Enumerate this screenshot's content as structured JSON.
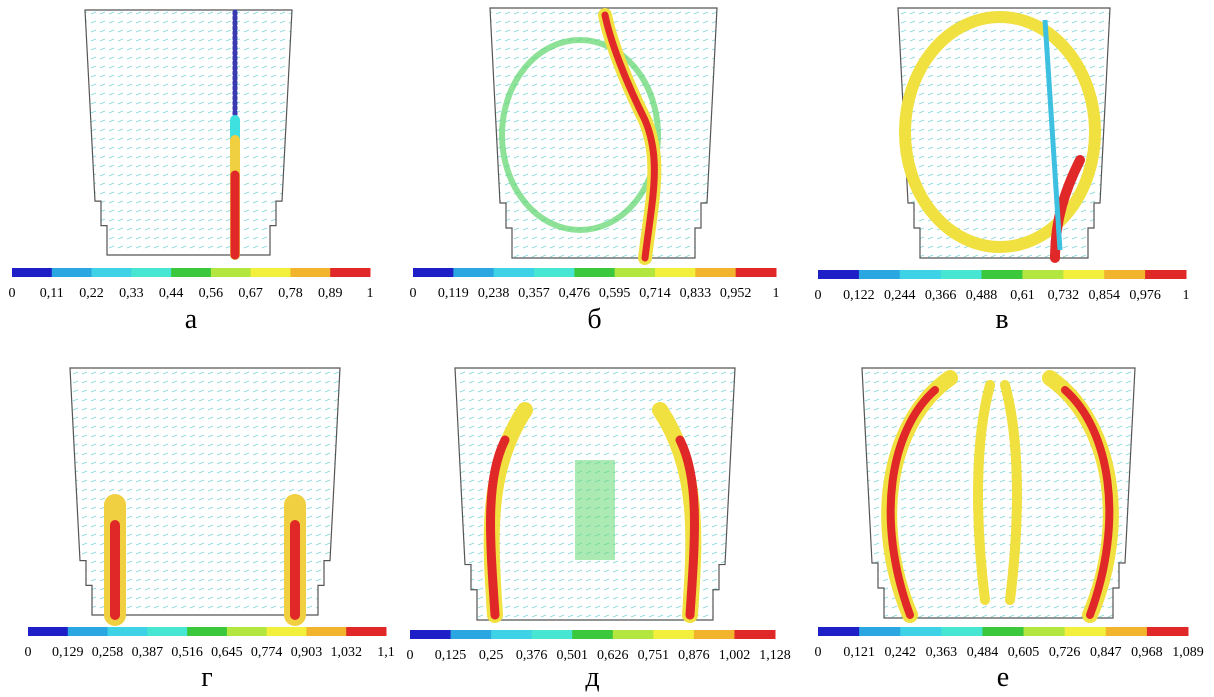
{
  "panels": [
    {
      "label": "а",
      "ticks": [
        "0",
        "0,11",
        "0,22",
        "0,33",
        "0,44",
        "0,56",
        "0,67",
        "0,78",
        "0,89",
        "1"
      ]
    },
    {
      "label": "б",
      "ticks": [
        "0",
        "0,119",
        "0,238",
        "0,357",
        "0,476",
        "0,595",
        "0,714",
        "0,833",
        "0,952",
        "1"
      ]
    },
    {
      "label": "в",
      "ticks": [
        "0",
        "0,122",
        "0,244",
        "0,366",
        "0,488",
        "0,61",
        "0,732",
        "0,854",
        "0,976",
        "1"
      ]
    },
    {
      "label": "г",
      "ticks": [
        "0",
        "0,129",
        "0,258",
        "0,387",
        "0,516",
        "0,645",
        "0,774",
        "0,903",
        "1,032",
        "1,1"
      ]
    },
    {
      "label": "д",
      "ticks": [
        "0",
        "0,125",
        "0,25",
        "0,376",
        "0,501",
        "0,626",
        "0,751",
        "0,876",
        "1,002",
        "1,128"
      ]
    },
    {
      "label": "е",
      "ticks": [
        "0",
        "0,121",
        "0,242",
        "0,363",
        "0,484",
        "0,605",
        "0,726",
        "0,847",
        "0,968",
        "1,089"
      ]
    }
  ]
}
